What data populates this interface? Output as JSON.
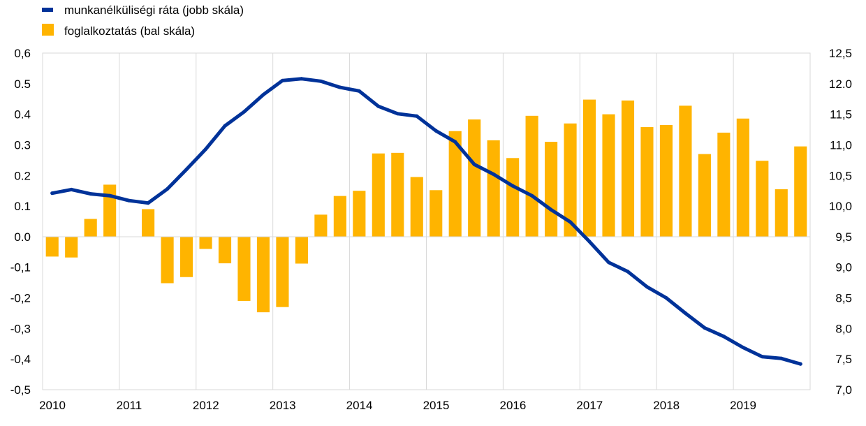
{
  "chart_data": {
    "type": "bar+line",
    "legend": {
      "placement": "top-left",
      "entries": [
        {
          "label": "munkanélküliségi ráta (jobb skála)",
          "color": "#003299",
          "kind": "line"
        },
        {
          "label": "foglalkoztatás (bal skála)",
          "color": "#FFB400",
          "kind": "bar"
        }
      ]
    },
    "x_tick_labels": [
      "2010",
      "2011",
      "2012",
      "2013",
      "2014",
      "2015",
      "2016",
      "2017",
      "2018",
      "2019"
    ],
    "left_axis": {
      "ylim": [
        -0.5,
        0.6
      ],
      "tick_labels": [
        "0,6",
        "0.5",
        "0.4",
        "0.3",
        "0.2",
        "0.1",
        "0.0",
        "-0,1",
        "-0,2",
        "-0,3",
        "-0,4",
        "-0,5"
      ]
    },
    "right_axis": {
      "ylim": [
        7.0,
        12.5
      ],
      "tick_labels": [
        "12,5",
        "12.0",
        "11,5",
        "11,0",
        "10,5",
        "10,0",
        "9,5",
        "9,0",
        "8,5",
        "8,0",
        "7,5",
        "7,0"
      ]
    },
    "grid": "vertical-at-years",
    "quarters": [
      "2010Q1",
      "2010Q2",
      "2010Q3",
      "2010Q4",
      "2011Q1",
      "2011Q2",
      "2011Q3",
      "2011Q4",
      "2012Q1",
      "2012Q2",
      "2012Q3",
      "2012Q4",
      "2013Q1",
      "2013Q2",
      "2013Q3",
      "2013Q4",
      "2014Q1",
      "2014Q2",
      "2014Q3",
      "2014Q4",
      "2015Q1",
      "2015Q2",
      "2015Q3",
      "2015Q4",
      "2016Q1",
      "2016Q2",
      "2016Q3",
      "2016Q4",
      "2017Q1",
      "2017Q2",
      "2017Q3",
      "2017Q4",
      "2018Q1",
      "2018Q2",
      "2018Q3",
      "2018Q4",
      "2019Q1",
      "2019Q2",
      "2019Q3",
      "2019Q4"
    ],
    "series": [
      {
        "name": "foglalkoztatás (bal skála)",
        "axis": "left",
        "type": "bar",
        "color": "#FFB400",
        "values": [
          -0.065,
          -0.068,
          0.058,
          0.17,
          0.0,
          0.09,
          -0.152,
          -0.132,
          -0.04,
          -0.087,
          -0.21,
          -0.247,
          -0.23,
          -0.088,
          0.072,
          0.133,
          0.15,
          0.272,
          0.274,
          0.195,
          0.152,
          0.345,
          0.383,
          0.315,
          0.257,
          0.395,
          0.31,
          0.37,
          0.448,
          0.4,
          0.445,
          0.358,
          0.365,
          0.428,
          0.27,
          0.34,
          0.386,
          0.248,
          0.155,
          0.295
        ]
      },
      {
        "name": "munkanélküliségi ráta (jobb skála)",
        "axis": "right",
        "type": "line",
        "color": "#003299",
        "values": [
          10.21,
          10.27,
          10.2,
          10.17,
          10.09,
          10.05,
          10.28,
          10.6,
          10.93,
          11.31,
          11.54,
          11.82,
          12.05,
          12.08,
          12.04,
          11.94,
          11.88,
          11.63,
          11.51,
          11.47,
          11.23,
          11.05,
          10.68,
          10.52,
          10.33,
          10.17,
          9.94,
          9.74,
          9.42,
          9.08,
          8.93,
          8.68,
          8.5,
          8.25,
          8.01,
          7.87,
          7.69,
          7.54,
          7.51,
          7.42
        ]
      }
    ]
  }
}
